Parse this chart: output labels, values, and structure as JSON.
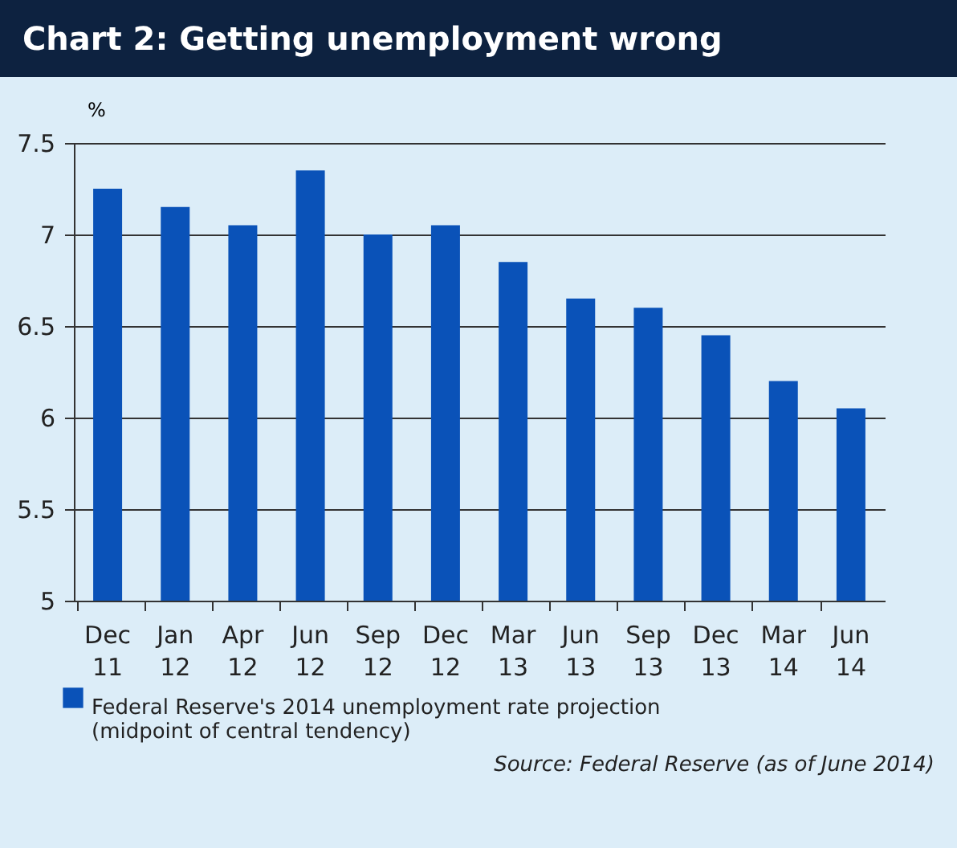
{
  "chart_data": {
    "type": "bar",
    "title": "Chart 2: Getting unemployment wrong",
    "ylabel": "%",
    "categories": [
      "Dec 11",
      "Jan 12",
      "Apr 12",
      "Jun 12",
      "Sep 12",
      "Dec 12",
      "Mar 13",
      "Jun 13",
      "Sep 13",
      "Dec 13",
      "Mar 14",
      "Jun 14"
    ],
    "series": [
      {
        "name": "Federal Reserve's 2014 unemployment rate projection (midpoint of central tendency)",
        "color": "#0a52b8",
        "values": [
          7.25,
          7.15,
          7.05,
          7.35,
          7.0,
          7.05,
          6.85,
          6.65,
          6.6,
          6.45,
          6.2,
          6.05
        ]
      }
    ],
    "ylim": [
      5,
      7.5
    ],
    "yticks": [
      5,
      5.5,
      6,
      6.5,
      7,
      7.5
    ],
    "grid": "y",
    "legend": "bottom",
    "annotations": [
      "Source:  Federal Reserve (as of June 2014)"
    ]
  }
}
